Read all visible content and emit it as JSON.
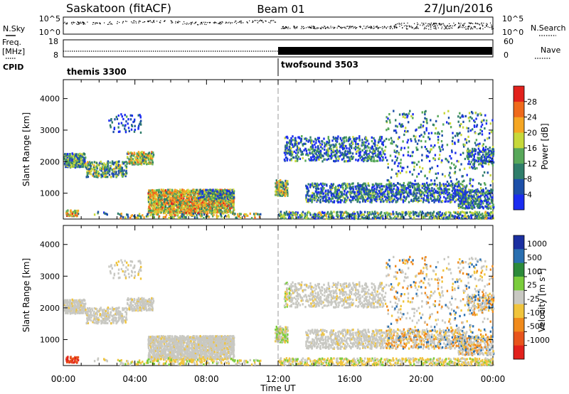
{
  "header": {
    "station": "Saskatoon (fitACF)",
    "beam": "Beam 01",
    "date": "27/Jun/2016"
  },
  "side_labels": {
    "nsky": "N.Sky",
    "freq_line1": "Freq.",
    "freq_line2": "[MHz]",
    "cpid": "CPID",
    "nsearch": "N.Search",
    "nave": "Nave"
  },
  "top_panel": {
    "left_ticks": [
      "10^5",
      "10^0"
    ],
    "right_ticks": [
      "10^5",
      "10^0"
    ]
  },
  "freq_panel": {
    "left_ticks": [
      "18",
      "8"
    ],
    "right_ticks": [
      "60",
      "0"
    ]
  },
  "cpid_panel": {
    "left_name": "themis 3300",
    "right_name": "twofsound 3503",
    "switch_hour": 12.0
  },
  "chart_data": [
    {
      "type": "heatmap",
      "title": "Power",
      "ylabel": "Slant Range [km]",
      "ylim": [
        180,
        4600
      ],
      "yticks": [
        "1000",
        "2000",
        "3000",
        "4000"
      ],
      "xlim": [
        0,
        24
      ],
      "x_ticklabels": [
        "00:00",
        "04:00",
        "08:00",
        "12:00",
        "16:00",
        "20:00",
        "00:00"
      ],
      "colorbar": {
        "label": "Power [dB]",
        "ticks": [
          "4",
          "8",
          "12",
          "16",
          "20",
          "24",
          "28"
        ],
        "colors": [
          "#1a2cf0",
          "#1d4fa8",
          "#2f7d6a",
          "#58a85a",
          "#c7d83a",
          "#f5a623",
          "#ef6a1c",
          "#e2211c"
        ]
      }
    },
    {
      "type": "heatmap",
      "title": "Velocity",
      "ylabel": "Slant Range [km]",
      "ylim": [
        180,
        4600
      ],
      "yticks": [
        "1000",
        "2000",
        "3000",
        "4000"
      ],
      "xlim": [
        0,
        24
      ],
      "x_ticklabels": [
        "00:00",
        "04:00",
        "08:00",
        "12:00",
        "16:00",
        "20:00",
        "00:00"
      ],
      "xlabel": "Time UT",
      "colorbar": {
        "label_prefix": "Velocity [m s",
        "label_sup": "-1",
        "label_suffix": "]",
        "ticks": [
          "1000",
          "500",
          "100",
          "25",
          "-25",
          "-100",
          "-500",
          "-1000"
        ],
        "colors": [
          "#1b2fa0",
          "#2a6fb0",
          "#2c8a3a",
          "#7acc3c",
          "#c8c8c2",
          "#f0c43c",
          "#f08a1c",
          "#e8541c",
          "#e2211c"
        ]
      }
    }
  ]
}
